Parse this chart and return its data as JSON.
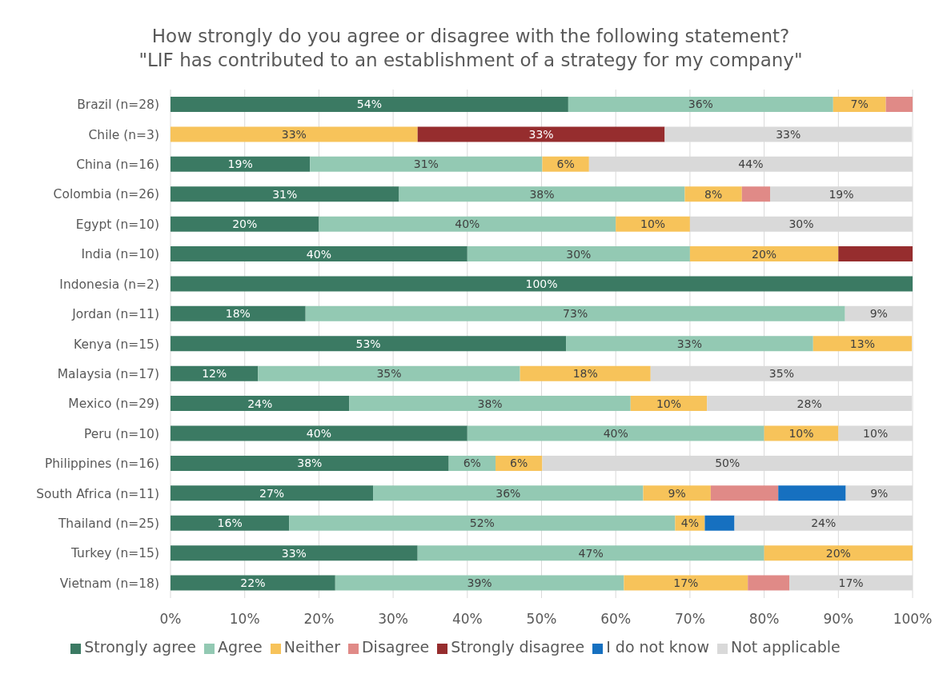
{
  "chart_data": {
    "type": "bar",
    "orientation": "horizontal",
    "stacked": true,
    "title": "How strongly do you agree or disagree with the following statement?",
    "subtitle": "\"LIF has contributed to an establishment of a strategy for my company\"",
    "categories": [
      "Brazil (n=28)",
      "Chile (n=3)",
      "China (n=16)",
      "Colombia (n=26)",
      "Egypt (n=10)",
      "India (n=10)",
      "Indonesia (n=2)",
      "Jordan (n=11)",
      "Kenya (n=15)",
      "Malaysia (n=17)",
      "Mexico (n=29)",
      "Peru (n=10)",
      "Philippines (n=16)",
      "South Africa (n=11)",
      "Thailand (n=25)",
      "Turkey (n=15)",
      "Vietnam (n=18)"
    ],
    "series": [
      {
        "name": "Strongly agree",
        "color": "#3b7a63",
        "values": [
          53.6,
          null,
          18.8,
          30.8,
          20,
          40,
          100,
          18.2,
          53.3,
          11.8,
          24.1,
          40,
          37.5,
          27.3,
          16,
          33.3,
          22.2
        ],
        "value_labels": [
          "54%",
          null,
          "19%",
          "31%",
          "20%",
          "40%",
          "100%",
          "18%",
          "53%",
          "12%",
          "24%",
          "40%",
          "38%",
          "27%",
          "16%",
          "33%",
          "22%"
        ]
      },
      {
        "name": "Agree",
        "color": "#93c9b3",
        "values": [
          35.7,
          null,
          31.3,
          38.5,
          40,
          30,
          null,
          72.7,
          33.3,
          35.3,
          37.9,
          40,
          6.3,
          36.4,
          52,
          46.7,
          38.9
        ],
        "value_labels": [
          "36%",
          null,
          "31%",
          "38%",
          "40%",
          "30%",
          null,
          "73%",
          "33%",
          "35%",
          "38%",
          "40%",
          "6%",
          "36%",
          "52%",
          "47%",
          "39%"
        ]
      },
      {
        "name": "Neither",
        "color": "#f7c35a",
        "values": [
          7.1,
          33.3,
          6.3,
          7.7,
          10,
          20,
          null,
          null,
          13.3,
          17.6,
          10.3,
          10,
          6.3,
          9.1,
          4,
          20,
          16.7
        ],
        "value_labels": [
          "7%",
          "33%",
          "6%",
          "8%",
          "10%",
          "20%",
          null,
          null,
          "13%",
          "18%",
          "10%",
          "10%",
          "6%",
          "9%",
          "4%",
          "20%",
          "17%"
        ]
      },
      {
        "name": "Disagree",
        "color": "#e08a87",
        "values": [
          3.6,
          null,
          null,
          3.8,
          null,
          null,
          null,
          null,
          null,
          null,
          null,
          null,
          null,
          9.1,
          null,
          null,
          5.6
        ]
      },
      {
        "name": "Strongly disagree",
        "color": "#962d2e",
        "values": [
          null,
          33.3,
          null,
          null,
          null,
          10,
          null,
          null,
          null,
          null,
          null,
          null,
          null,
          null,
          null,
          null,
          null
        ],
        "value_labels": [
          null,
          "33%",
          null,
          null,
          null,
          null,
          null,
          null,
          null,
          null,
          null,
          null,
          null,
          null,
          null,
          null,
          null
        ]
      },
      {
        "name": "I do not know",
        "color": "#1670c0",
        "values": [
          null,
          null,
          null,
          null,
          null,
          null,
          null,
          null,
          null,
          null,
          null,
          null,
          null,
          9.1,
          4,
          null,
          null
        ]
      },
      {
        "name": "Not applicable",
        "color": "#d9d9d9",
        "values": [
          null,
          33.3,
          43.8,
          19.2,
          30,
          null,
          null,
          9.1,
          null,
          35.3,
          27.6,
          10,
          50,
          9.1,
          24,
          null,
          16.7
        ],
        "value_labels": [
          null,
          "33%",
          "44%",
          "19%",
          "30%",
          null,
          null,
          "9%",
          null,
          "35%",
          "28%",
          "10%",
          "50%",
          "9%",
          "24%",
          null,
          "17%"
        ]
      }
    ],
    "xlim": [
      0,
      100
    ],
    "xticks": [
      {
        "value": 0,
        "label": "0%"
      },
      {
        "value": 10,
        "label": "10%"
      },
      {
        "value": 20,
        "label": "20%"
      },
      {
        "value": 30,
        "label": "30%"
      },
      {
        "value": 40,
        "label": "40%"
      },
      {
        "value": 50,
        "label": "50%"
      },
      {
        "value": 60,
        "label": "60%"
      },
      {
        "value": 70,
        "label": "70%"
      },
      {
        "value": 80,
        "label": "80%"
      },
      {
        "value": 90,
        "label": "90%"
      },
      {
        "value": 100,
        "label": "100%"
      }
    ],
    "grid": "x",
    "legend": "bottom"
  }
}
